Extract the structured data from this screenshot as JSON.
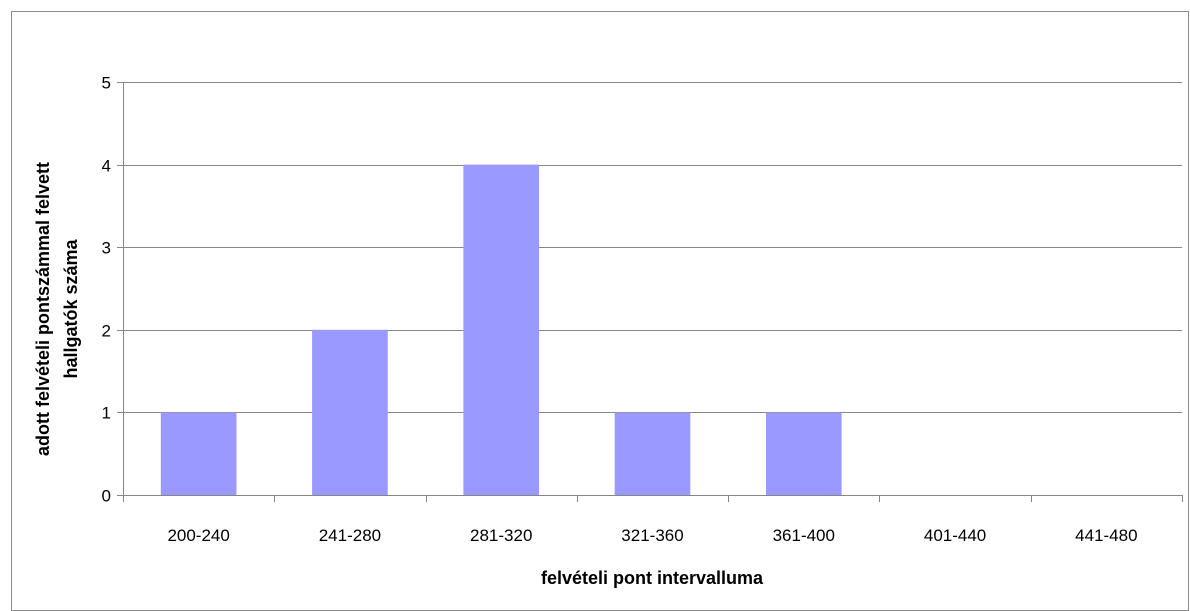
{
  "chart_data": {
    "type": "bar",
    "title": "",
    "xlabel": "felvételi pont intervalluma",
    "ylabel_lines": [
      "adott felvételi pontszámmal felvett",
      "hallgatók száma"
    ],
    "categories": [
      "200-240",
      "241-280",
      "281-320",
      "321-360",
      "361-400",
      "401-440",
      "441-480"
    ],
    "values": [
      1,
      2,
      4,
      1,
      1,
      0,
      0
    ],
    "ylim": [
      0,
      5
    ],
    "yticks": [
      0,
      1,
      2,
      3,
      4,
      5
    ],
    "grid": true,
    "legend": "none",
    "colors": {
      "bar": "#9999ff",
      "grid": "#868686",
      "axis": "#868686",
      "frame": "#8c8c8c"
    }
  }
}
